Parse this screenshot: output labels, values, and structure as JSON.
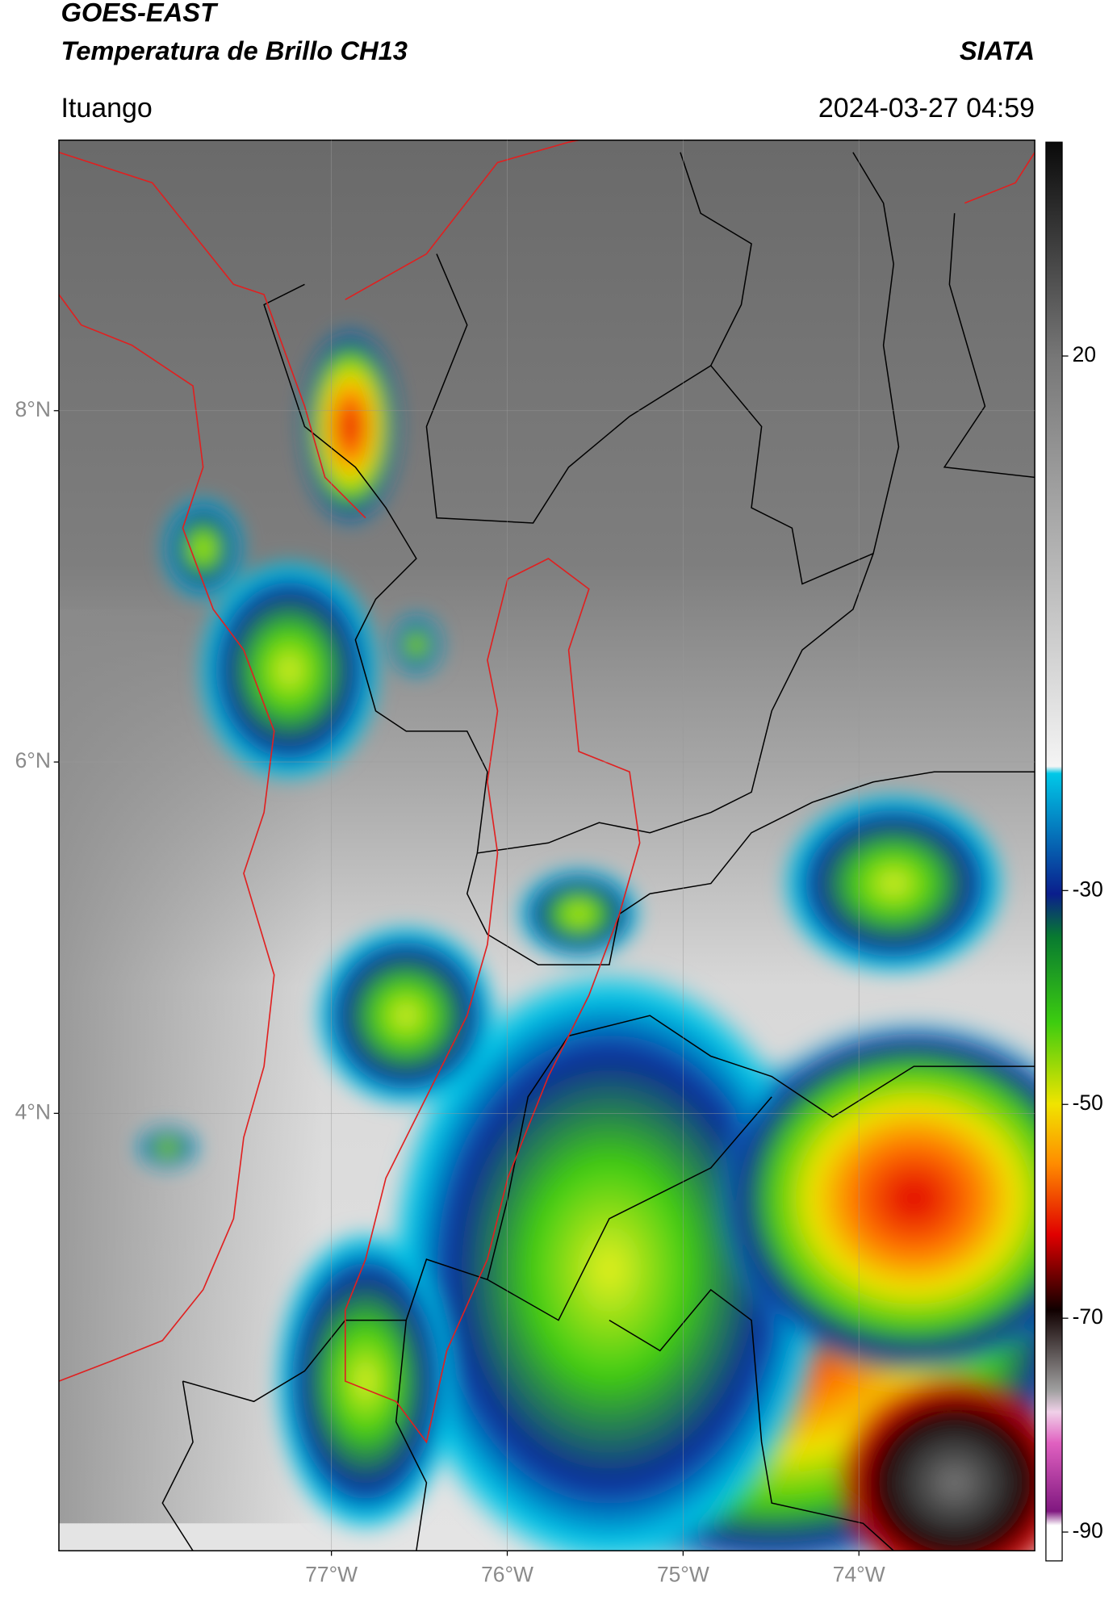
{
  "map": {
    "title": "GOES-EAST",
    "subtitle": "Temperatura de Brillo CH13",
    "source": "SIATA",
    "location": "Ituango",
    "datetime": "2024-03-27 04:59",
    "lonlim": [
      -78.55,
      -73.0
    ],
    "latlim": [
      1.51,
      9.54
    ],
    "latticks": [
      {
        "value": 8,
        "label": "8°N"
      },
      {
        "value": 6,
        "label": "6°N"
      },
      {
        "value": 4,
        "label": "4°N"
      }
    ],
    "lonticks": [
      {
        "value": -77,
        "label": "77°W"
      },
      {
        "value": -76,
        "label": "76°W"
      },
      {
        "value": -75,
        "label": "75°W"
      },
      {
        "value": -74,
        "label": "74°W"
      }
    ],
    "grid": true,
    "colorbar": {
      "lim": [
        -92.7,
        40
      ],
      "ticks": [
        20,
        -30,
        -50,
        -70,
        -90
      ]
    }
  }
}
